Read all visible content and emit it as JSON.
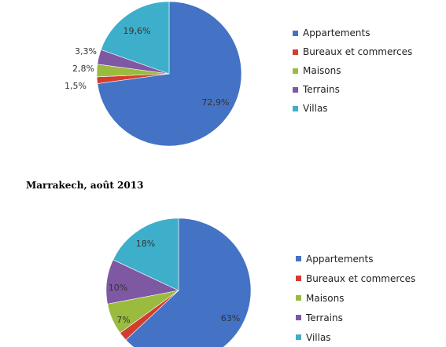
{
  "colors": {
    "appartements": "#4472C4",
    "bureaux": "#D33D30",
    "maisons": "#9BBB3F",
    "terrains": "#7E58A3",
    "villas": "#3EAFCB"
  },
  "chart_data": [
    {
      "type": "pie",
      "title": "",
      "categories": [
        "Appartements",
        "Bureaux et commerces",
        "Maisons",
        "Terrains",
        "Villas"
      ],
      "values": [
        72.9,
        1.5,
        2.8,
        3.3,
        19.6
      ],
      "labels": [
        "72,9%",
        "1,5%",
        "2,8%",
        "3,3%",
        "19,6%"
      ],
      "legend": "right"
    },
    {
      "type": "pie",
      "title": "Marrakech,  août 2013",
      "categories": [
        "Appartements",
        "Bureaux et commerces",
        "Maisons",
        "Terrains",
        "Villas"
      ],
      "values": [
        63,
        2,
        7,
        10,
        18
      ],
      "labels": [
        "63%",
        "",
        "7%",
        "10%",
        "18%"
      ],
      "legend": "right"
    }
  ]
}
